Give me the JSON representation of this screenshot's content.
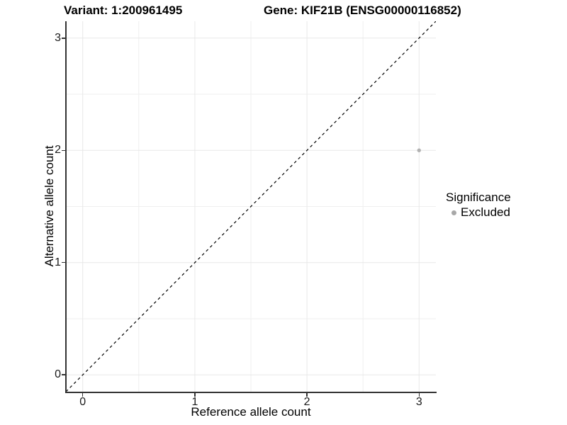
{
  "chart_data": {
    "type": "scatter",
    "title_left": "Variant: 1:200961495",
    "title_right": "Gene: KIF21B (ENSG00000116852)",
    "xlabel": "Reference allele count",
    "ylabel": "Alternative allele count",
    "xlim": [
      -0.15,
      3.15
    ],
    "ylim": [
      -0.15,
      3.15
    ],
    "x_ticks": [
      0,
      1,
      2,
      3
    ],
    "y_ticks": [
      0,
      1,
      2,
      3
    ],
    "x_minor_gridlines": [
      0.5,
      1.5,
      2.5
    ],
    "y_minor_gridlines": [
      0.5,
      1.5,
      2.5
    ],
    "grid": "major and minor, light gray on white panel",
    "identity_line": {
      "style": "dashed",
      "from_xy": [
        -0.15,
        -0.15
      ],
      "to_xy": [
        3.15,
        3.15
      ]
    },
    "series": [
      {
        "name": "Excluded",
        "points": [
          {
            "x": 3,
            "y": 2
          }
        ]
      }
    ],
    "legend": {
      "position": "right",
      "title": "Significance",
      "items": [
        {
          "label": "Excluded",
          "color": "#afafaf"
        }
      ]
    }
  },
  "colors": {
    "background": "#ffffff",
    "gridline_major": "#e8e8e8",
    "gridline_minor": "#efefef",
    "axis_line": "#333333",
    "tick_text": "#1a1a1a",
    "point": "#b2b2b2",
    "legend_dot": "#a8a8a8",
    "identity_line": "#000000"
  }
}
